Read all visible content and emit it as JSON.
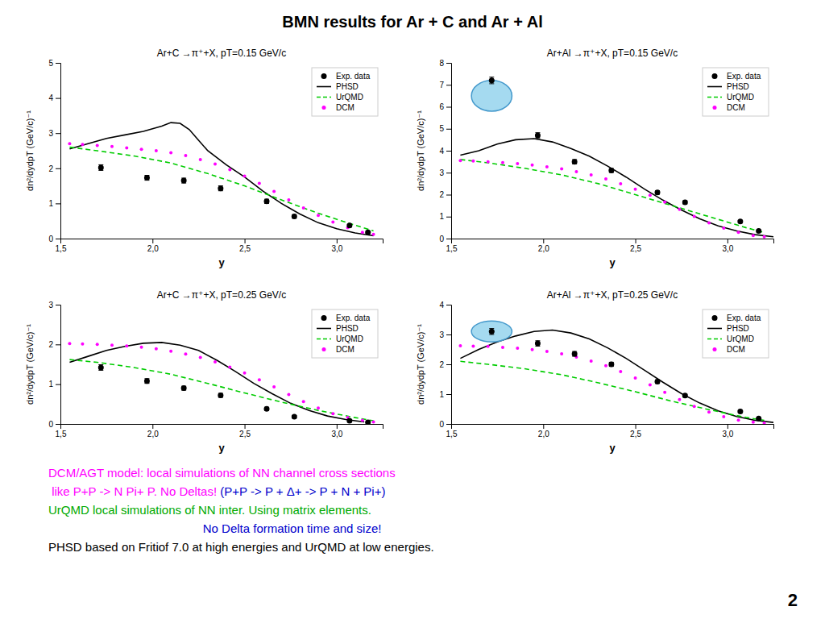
{
  "title": "BMN results for Ar + C and Ar + Al",
  "annotations": [
    {
      "parts": [
        {
          "text": "DCM/AGT model: local simulations of NN channel cross sections",
          "color": "#ff00ff"
        }
      ]
    },
    {
      "parts": [
        {
          "text": " like P+P -> N Pi+ P. No Deltas! ",
          "color": "#ff00ff"
        },
        {
          "text": "(P+P -> P + Δ+ -> P + N + Pi+)",
          "color": "#0000cc"
        }
      ]
    },
    {
      "parts": [
        {
          "text": "UrQMD local simulations of NN inter. Using matrix elements.",
          "color": "#00aa00"
        }
      ]
    },
    {
      "parts": [
        {
          "text": "                                              No Delta formation time and size!",
          "color": "#0000cc"
        }
      ]
    },
    {
      "parts": [
        {
          "text": "PHSD based on Fritiof 7.0 at high energies and UrQMD at low energies.",
          "color": "#000000"
        }
      ]
    }
  ],
  "page_number": "2",
  "chart_data": [
    {
      "type": "line",
      "title": "Ar+C →π⁺+X, pT=0.15 GeV/c",
      "xlabel": "y",
      "ylabel": "dn²/dydpT (GeV/c)⁻¹",
      "xlim": [
        1.5,
        3.25
      ],
      "xticks": [
        {
          "value": 1.5,
          "label": "1,5"
        },
        {
          "value": 2.0,
          "label": "2,0"
        },
        {
          "value": 2.5,
          "label": "2,5"
        },
        {
          "value": 3.0,
          "label": "3,0"
        }
      ],
      "ylim": [
        0,
        5
      ],
      "yticks": [
        0,
        1,
        2,
        3,
        4,
        5
      ],
      "grid": false,
      "legend": "upper right",
      "series": [
        {
          "name": "Exp. data",
          "type": "scatter",
          "marker": "circle",
          "color": "#000000",
          "x": [
            1.72,
            1.97,
            2.17,
            2.37,
            2.62,
            2.77,
            3.07,
            3.17
          ],
          "values": [
            2.02,
            1.73,
            1.65,
            1.43,
            1.06,
            0.63,
            0.37,
            0.18
          ],
          "errors": [
            0.08,
            0.07,
            0.07,
            0.07,
            0.06,
            0.05,
            0.04,
            0.03
          ]
        },
        {
          "name": "PHSD",
          "type": "line",
          "line_style": "solid",
          "color": "#000000",
          "x": [
            1.55,
            1.65,
            1.75,
            1.85,
            1.95,
            2.05,
            2.1,
            2.15,
            2.2,
            2.25,
            2.3,
            2.4,
            2.5,
            2.6,
            2.7,
            2.8,
            2.9,
            3.0,
            3.1,
            3.2
          ],
          "values": [
            2.55,
            2.7,
            2.85,
            2.95,
            3.05,
            3.2,
            3.3,
            3.28,
            3.1,
            2.8,
            2.5,
            2.1,
            1.75,
            1.35,
            1.0,
            0.7,
            0.45,
            0.28,
            0.16,
            0.08
          ]
        },
        {
          "name": "UrQMD",
          "type": "line",
          "line_style": "dashed",
          "color": "#00cc00",
          "x": [
            1.55,
            1.7,
            1.9,
            2.1,
            2.3,
            2.5,
            2.7,
            2.9,
            3.1,
            3.2
          ],
          "values": [
            2.6,
            2.5,
            2.35,
            2.15,
            1.85,
            1.5,
            1.1,
            0.72,
            0.38,
            0.22
          ]
        },
        {
          "name": "DCM",
          "type": "scatter",
          "marker": "dot",
          "color": "#ff00ff",
          "x": [
            1.55,
            1.62,
            1.7,
            1.78,
            1.86,
            1.94,
            2.02,
            2.1,
            2.18,
            2.26,
            2.34,
            2.42,
            2.5,
            2.58,
            2.66,
            2.74,
            2.82,
            2.9,
            2.98,
            3.06,
            3.14,
            3.2
          ],
          "values": [
            2.7,
            2.68,
            2.65,
            2.62,
            2.58,
            2.54,
            2.5,
            2.44,
            2.36,
            2.25,
            2.12,
            1.96,
            1.78,
            1.57,
            1.34,
            1.1,
            0.87,
            0.66,
            0.47,
            0.31,
            0.18,
            0.12
          ]
        }
      ]
    },
    {
      "type": "line",
      "title": "Ar+Al →π⁺+X, pT=0.15 GeV/c",
      "xlabel": "y",
      "ylabel": "dn²/dydpT (GeV/c)⁻¹",
      "xlim": [
        1.5,
        3.25
      ],
      "xticks": [
        {
          "value": 1.5,
          "label": "1,5"
        },
        {
          "value": 2.0,
          "label": "2,0"
        },
        {
          "value": 2.5,
          "label": "2,5"
        },
        {
          "value": 3.0,
          "label": "3,0"
        }
      ],
      "ylim": [
        0,
        8
      ],
      "yticks": [
        0,
        1,
        2,
        3,
        4,
        5,
        6,
        7,
        8
      ],
      "grid": false,
      "legend": "upper right",
      "series": [
        {
          "name": "Exp. data",
          "type": "scatter",
          "marker": "circle",
          "color": "#000000",
          "x": [
            1.72,
            1.97,
            2.17,
            2.37,
            2.62,
            2.77,
            3.07,
            3.17
          ],
          "values": [
            7.2,
            4.7,
            3.5,
            3.1,
            2.1,
            1.65,
            0.78,
            0.35
          ],
          "errors": [
            0.15,
            0.12,
            0.1,
            0.09,
            0.08,
            0.07,
            0.05,
            0.04
          ]
        },
        {
          "name": "PHSD",
          "type": "line",
          "line_style": "solid",
          "color": "#000000",
          "x": [
            1.55,
            1.65,
            1.75,
            1.85,
            1.95,
            2.05,
            2.15,
            2.25,
            2.35,
            2.45,
            2.55,
            2.65,
            2.75,
            2.85,
            2.95,
            3.05,
            3.15,
            3.25
          ],
          "values": [
            3.8,
            4.0,
            4.3,
            4.5,
            4.55,
            4.4,
            4.1,
            3.75,
            3.3,
            2.8,
            2.25,
            1.75,
            1.3,
            0.9,
            0.58,
            0.35,
            0.18,
            0.08
          ]
        },
        {
          "name": "UrQMD",
          "type": "line",
          "line_style": "dashed",
          "color": "#00cc00",
          "x": [
            1.55,
            1.7,
            1.9,
            2.1,
            2.3,
            2.5,
            2.7,
            2.9,
            3.1,
            3.2
          ],
          "values": [
            3.6,
            3.45,
            3.2,
            2.9,
            2.5,
            2.0,
            1.5,
            1.0,
            0.5,
            0.28
          ]
        },
        {
          "name": "DCM",
          "type": "scatter",
          "marker": "dot",
          "color": "#ff00ff",
          "x": [
            1.55,
            1.62,
            1.7,
            1.78,
            1.86,
            1.94,
            2.02,
            2.1,
            2.18,
            2.26,
            2.34,
            2.42,
            2.5,
            2.58,
            2.66,
            2.74,
            2.82,
            2.9,
            2.98,
            3.06,
            3.14,
            3.2
          ],
          "values": [
            3.55,
            3.53,
            3.5,
            3.46,
            3.41,
            3.35,
            3.27,
            3.17,
            3.05,
            2.9,
            2.72,
            2.5,
            2.25,
            1.97,
            1.66,
            1.33,
            1.01,
            0.72,
            0.48,
            0.28,
            0.14,
            0.08
          ]
        }
      ],
      "highlight": {
        "x": 1.72,
        "y": 6.5,
        "width": 0.22,
        "height": 1.4
      }
    },
    {
      "type": "line",
      "title": "Ar+C →π⁺+X, pT=0.25 GeV/c",
      "xlabel": "y",
      "ylabel": "dn²/dydpT (GeV/c)⁻¹",
      "xlim": [
        1.5,
        3.25
      ],
      "xticks": [
        {
          "value": 1.5,
          "label": "1,5"
        },
        {
          "value": 2.0,
          "label": "2,0"
        },
        {
          "value": 2.5,
          "label": "2,5"
        },
        {
          "value": 3.0,
          "label": "3,0"
        }
      ],
      "ylim": [
        0,
        3
      ],
      "yticks": [
        0,
        1,
        2,
        3
      ],
      "grid": false,
      "legend": "upper right",
      "series": [
        {
          "name": "Exp. data",
          "type": "scatter",
          "marker": "circle",
          "color": "#000000",
          "x": [
            1.72,
            1.97,
            2.17,
            2.37,
            2.62,
            2.77,
            3.07,
            3.17
          ],
          "values": [
            1.42,
            1.08,
            0.9,
            0.72,
            0.38,
            0.18,
            0.08,
            0.04
          ],
          "errors": [
            0.07,
            0.06,
            0.05,
            0.05,
            0.04,
            0.03,
            0.02,
            0.01
          ]
        },
        {
          "name": "PHSD",
          "type": "line",
          "line_style": "solid",
          "color": "#000000",
          "x": [
            1.55,
            1.65,
            1.75,
            1.85,
            1.95,
            2.05,
            2.15,
            2.25,
            2.35,
            2.45,
            2.55,
            2.65,
            2.75,
            2.85,
            2.95,
            3.05,
            3.15
          ],
          "values": [
            1.55,
            1.7,
            1.85,
            1.95,
            2.03,
            2.05,
            1.98,
            1.85,
            1.6,
            1.32,
            1.02,
            0.76,
            0.52,
            0.34,
            0.2,
            0.11,
            0.05
          ]
        },
        {
          "name": "UrQMD",
          "type": "line",
          "line_style": "dashed",
          "color": "#00cc00",
          "x": [
            1.55,
            1.7,
            1.9,
            2.1,
            2.3,
            2.5,
            2.7,
            2.9,
            3.1,
            3.2
          ],
          "values": [
            1.62,
            1.55,
            1.42,
            1.25,
            1.02,
            0.78,
            0.55,
            0.34,
            0.16,
            0.08
          ]
        },
        {
          "name": "DCM",
          "type": "scatter",
          "marker": "dot",
          "color": "#ff00ff",
          "x": [
            1.55,
            1.62,
            1.7,
            1.78,
            1.86,
            1.94,
            2.02,
            2.1,
            2.18,
            2.26,
            2.34,
            2.42,
            2.5,
            2.58,
            2.66,
            2.74,
            2.82,
            2.9,
            2.98,
            3.06,
            3.14,
            3.2
          ],
          "values": [
            2.02,
            2.01,
            2.0,
            1.98,
            1.96,
            1.93,
            1.89,
            1.83,
            1.76,
            1.67,
            1.56,
            1.43,
            1.28,
            1.11,
            0.93,
            0.74,
            0.56,
            0.4,
            0.26,
            0.16,
            0.09,
            0.05
          ]
        }
      ]
    },
    {
      "type": "line",
      "title": "Ar+Al →π⁺+X, pT=0.25 GeV/c",
      "xlabel": "y",
      "ylabel": "dn²/dydpT (GeV/c)⁻¹",
      "xlim": [
        1.5,
        3.25
      ],
      "xticks": [
        {
          "value": 1.5,
          "label": "1,5"
        },
        {
          "value": 2.0,
          "label": "2,0"
        },
        {
          "value": 2.5,
          "label": "2,5"
        },
        {
          "value": 3.0,
          "label": "3,0"
        }
      ],
      "ylim": [
        0,
        4
      ],
      "yticks": [
        0,
        1,
        2,
        3,
        4
      ],
      "grid": false,
      "legend": "upper right",
      "series": [
        {
          "name": "Exp. data",
          "type": "scatter",
          "marker": "circle",
          "color": "#000000",
          "x": [
            1.72,
            1.97,
            2.17,
            2.37,
            2.62,
            2.77,
            3.07,
            3.17
          ],
          "values": [
            3.1,
            2.7,
            2.35,
            2.0,
            1.42,
            0.95,
            0.42,
            0.18
          ],
          "errors": [
            0.1,
            0.09,
            0.08,
            0.07,
            0.06,
            0.05,
            0.03,
            0.02
          ]
        },
        {
          "name": "PHSD",
          "type": "line",
          "line_style": "solid",
          "color": "#000000",
          "x": [
            1.55,
            1.65,
            1.75,
            1.85,
            1.95,
            2.05,
            2.15,
            2.25,
            2.35,
            2.45,
            2.55,
            2.65,
            2.75,
            2.85,
            2.95,
            3.05,
            3.15,
            3.25
          ],
          "values": [
            2.2,
            2.5,
            2.75,
            2.95,
            3.1,
            3.15,
            3.05,
            2.85,
            2.55,
            2.2,
            1.8,
            1.4,
            1.02,
            0.7,
            0.44,
            0.25,
            0.12,
            0.05
          ]
        },
        {
          "name": "UrQMD",
          "type": "line",
          "line_style": "dashed",
          "color": "#00cc00",
          "x": [
            1.55,
            1.7,
            1.9,
            2.1,
            2.3,
            2.5,
            2.7,
            2.9,
            3.1,
            3.2
          ],
          "values": [
            2.1,
            2.0,
            1.85,
            1.65,
            1.38,
            1.08,
            0.76,
            0.48,
            0.22,
            0.12
          ]
        },
        {
          "name": "DCM",
          "type": "scatter",
          "marker": "dot",
          "color": "#ff00ff",
          "x": [
            1.55,
            1.62,
            1.7,
            1.78,
            1.86,
            1.94,
            2.02,
            2.1,
            2.18,
            2.26,
            2.34,
            2.42,
            2.5,
            2.58,
            2.66,
            2.74,
            2.82,
            2.9,
            2.98,
            3.06,
            3.14,
            3.2
          ],
          "values": [
            2.62,
            2.61,
            2.6,
            2.57,
            2.54,
            2.49,
            2.43,
            2.35,
            2.24,
            2.11,
            1.95,
            1.76,
            1.54,
            1.31,
            1.06,
            0.82,
            0.59,
            0.4,
            0.24,
            0.13,
            0.06,
            0.03
          ]
        }
      ],
      "highlight": {
        "x": 1.72,
        "y": 3.1,
        "width": 0.22,
        "height": 0.7
      }
    }
  ]
}
